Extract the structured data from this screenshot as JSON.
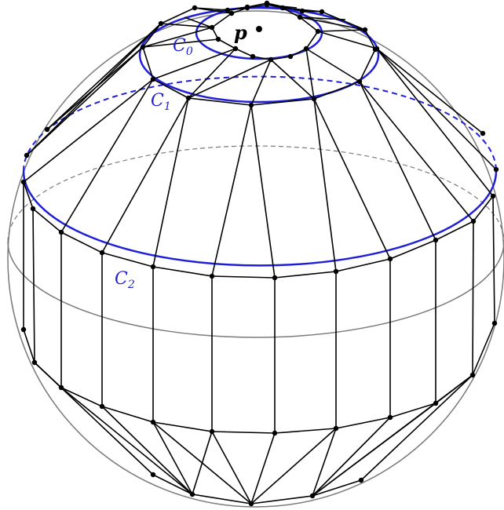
{
  "diagram": {
    "colors": {
      "sphere": "#7a7a7a",
      "equator_dashed": "#7a7a7a",
      "circles": "#1f1fd6",
      "mesh": "#000000",
      "vertices": "#000000"
    },
    "labels": {
      "p": "p",
      "c0": "C",
      "c0_sub": "0",
      "c1": "C",
      "c1_sub": "1",
      "c2": "C",
      "c2_sub": "2"
    }
  }
}
